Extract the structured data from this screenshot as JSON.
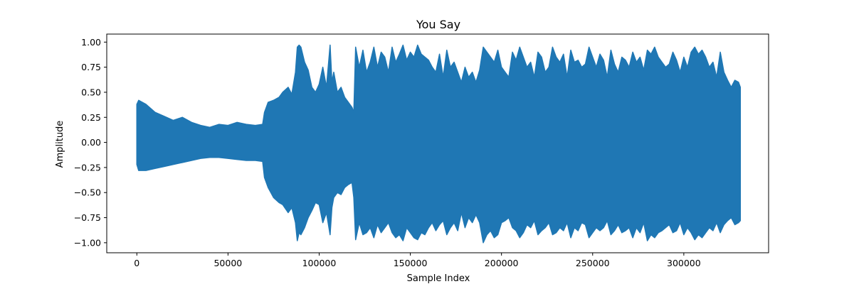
{
  "chart_data": {
    "type": "line",
    "title": "You Say",
    "xlabel": "Sample Index",
    "ylabel": "Amplitude",
    "xlim": [
      -16500,
      346500
    ],
    "ylim": [
      -1.1,
      1.08
    ],
    "x_ticks": [
      0,
      50000,
      100000,
      150000,
      200000,
      250000,
      300000
    ],
    "x_tick_labels": [
      "0",
      "50000",
      "100000",
      "150000",
      "200000",
      "250000",
      "300000"
    ],
    "y_ticks": [
      1.0,
      0.75,
      0.5,
      0.25,
      0.0,
      -0.25,
      -0.5,
      -0.75,
      -1.0
    ],
    "y_tick_labels": [
      "1.00",
      "0.75",
      "0.50",
      "0.25",
      "0.00",
      "−0.25",
      "−0.50",
      "−0.75",
      "−1.00"
    ],
    "grid": false,
    "color": "#1f77b4",
    "series": [
      {
        "envelope_x": [
          0,
          1000,
          5000,
          10000,
          15000,
          20000,
          25000,
          30000,
          35000,
          40000,
          45000,
          50000,
          55000,
          60000,
          65000,
          69000,
          70000,
          72000,
          75000,
          78000,
          80000,
          83000,
          85000,
          87000,
          88000,
          89000,
          90000,
          92000,
          94000,
          96000,
          98000,
          100000,
          102000,
          104000,
          106000,
          107000,
          108000,
          110000,
          112000,
          114000,
          116000,
          118000,
          119000,
          120000,
          122000,
          124000,
          126000,
          128000,
          130000,
          132000,
          134000,
          136000,
          138000,
          140000,
          142000,
          144000,
          146000,
          148000,
          150000,
          152000,
          154000,
          156000,
          158000,
          160000,
          162000,
          164000,
          166000,
          168000,
          170000,
          172000,
          174000,
          176000,
          178000,
          180000,
          182000,
          184000,
          186000,
          188000,
          190000,
          192000,
          194000,
          196000,
          198000,
          200000,
          202000,
          204000,
          206000,
          208000,
          210000,
          212000,
          214000,
          216000,
          218000,
          220000,
          222000,
          224000,
          226000,
          228000,
          230000,
          232000,
          234000,
          236000,
          238000,
          240000,
          242000,
          244000,
          246000,
          248000,
          250000,
          252000,
          254000,
          256000,
          258000,
          260000,
          262000,
          264000,
          266000,
          268000,
          270000,
          272000,
          274000,
          276000,
          278000,
          280000,
          282000,
          284000,
          286000,
          288000,
          290000,
          292000,
          294000,
          296000,
          298000,
          300000,
          302000,
          304000,
          306000,
          308000,
          310000,
          312000,
          314000,
          316000,
          318000,
          320000,
          322000,
          324000,
          326000,
          328000,
          330000,
          331000
        ],
        "upper": [
          0.38,
          0.42,
          0.38,
          0.3,
          0.26,
          0.22,
          0.25,
          0.2,
          0.17,
          0.15,
          0.18,
          0.17,
          0.2,
          0.18,
          0.17,
          0.18,
          0.3,
          0.4,
          0.42,
          0.45,
          0.5,
          0.55,
          0.48,
          0.7,
          0.95,
          0.97,
          0.95,
          0.8,
          0.72,
          0.55,
          0.5,
          0.58,
          0.75,
          0.55,
          0.97,
          0.6,
          0.7,
          0.5,
          0.55,
          0.45,
          0.4,
          0.35,
          0.3,
          0.95,
          0.75,
          0.92,
          0.7,
          0.8,
          0.95,
          0.75,
          0.9,
          0.85,
          0.7,
          0.95,
          0.8,
          0.88,
          0.97,
          0.82,
          0.9,
          0.85,
          0.97,
          0.88,
          0.85,
          0.82,
          0.75,
          0.7,
          0.88,
          0.65,
          0.92,
          0.75,
          0.8,
          0.7,
          0.6,
          0.75,
          0.65,
          0.7,
          0.6,
          0.72,
          0.95,
          0.9,
          0.85,
          0.8,
          0.92,
          0.75,
          0.7,
          0.65,
          0.9,
          0.82,
          0.95,
          0.85,
          0.75,
          0.8,
          0.65,
          0.9,
          0.85,
          0.7,
          0.75,
          0.95,
          0.85,
          0.8,
          0.88,
          0.65,
          0.92,
          0.8,
          0.82,
          0.75,
          0.78,
          0.95,
          0.85,
          0.75,
          0.88,
          0.82,
          0.65,
          0.92,
          0.78,
          0.7,
          0.85,
          0.82,
          0.75,
          0.9,
          0.8,
          0.85,
          0.72,
          0.92,
          0.88,
          0.95,
          0.85,
          0.8,
          0.75,
          0.78,
          0.9,
          0.82,
          0.7,
          0.85,
          0.75,
          0.9,
          0.95,
          0.88,
          0.92,
          0.85,
          0.75,
          0.8,
          0.65,
          0.9,
          0.7,
          0.62,
          0.55,
          0.62,
          0.6,
          0.55
        ],
        "lower": [
          -0.22,
          -0.28,
          -0.28,
          -0.26,
          -0.24,
          -0.22,
          -0.2,
          -0.18,
          -0.16,
          -0.15,
          -0.15,
          -0.16,
          -0.17,
          -0.18,
          -0.18,
          -0.19,
          -0.35,
          -0.45,
          -0.55,
          -0.6,
          -0.62,
          -0.7,
          -0.65,
          -0.8,
          -0.98,
          -0.9,
          -0.92,
          -0.85,
          -0.75,
          -0.68,
          -0.6,
          -0.62,
          -0.8,
          -0.7,
          -0.92,
          -0.65,
          -0.55,
          -0.5,
          -0.52,
          -0.45,
          -0.42,
          -0.4,
          -0.55,
          -0.97,
          -0.8,
          -0.92,
          -0.9,
          -0.85,
          -0.95,
          -0.82,
          -0.9,
          -0.85,
          -0.8,
          -0.9,
          -0.95,
          -0.92,
          -0.98,
          -0.85,
          -0.9,
          -0.95,
          -0.97,
          -0.9,
          -0.92,
          -0.85,
          -0.8,
          -0.88,
          -0.82,
          -0.78,
          -0.92,
          -0.85,
          -0.8,
          -0.88,
          -0.7,
          -0.85,
          -0.75,
          -0.8,
          -0.72,
          -0.8,
          -1.0,
          -0.92,
          -0.88,
          -0.95,
          -0.92,
          -0.8,
          -0.78,
          -0.75,
          -0.85,
          -0.88,
          -0.95,
          -0.9,
          -0.82,
          -0.85,
          -0.78,
          -0.92,
          -0.88,
          -0.85,
          -0.8,
          -0.92,
          -0.9,
          -0.85,
          -0.88,
          -0.8,
          -0.95,
          -0.85,
          -0.88,
          -0.8,
          -0.82,
          -0.95,
          -0.9,
          -0.85,
          -0.88,
          -0.85,
          -0.78,
          -0.92,
          -0.88,
          -0.82,
          -0.9,
          -0.88,
          -0.85,
          -0.95,
          -0.85,
          -0.9,
          -0.8,
          -0.98,
          -0.92,
          -0.95,
          -0.9,
          -0.88,
          -0.85,
          -0.82,
          -0.9,
          -0.88,
          -0.8,
          -0.92,
          -0.85,
          -0.9,
          -0.97,
          -0.92,
          -0.95,
          -0.9,
          -0.85,
          -0.88,
          -0.8,
          -0.9,
          -0.82,
          -0.78,
          -0.75,
          -0.82,
          -0.8,
          -0.78
        ]
      }
    ]
  }
}
